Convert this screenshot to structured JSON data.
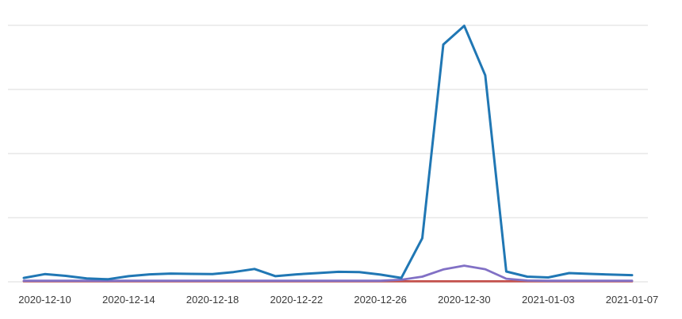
{
  "chart_data": {
    "type": "line",
    "title": "",
    "legend": "none",
    "grid": true,
    "y_axis_labels_visible": false,
    "ylim": [
      0,
      103
    ],
    "y_gridlines": [
      0,
      25,
      50,
      75,
      100
    ],
    "x_tick_labels": [
      "2020-12-10",
      "2020-12-14",
      "2020-12-18",
      "2020-12-22",
      "2020-12-26",
      "2020-12-30",
      "2021-01-03",
      "2021-01-07"
    ],
    "x_dates": [
      "2020-12-09",
      "2020-12-10",
      "2020-12-11",
      "2020-12-12",
      "2020-12-13",
      "2020-12-14",
      "2020-12-15",
      "2020-12-16",
      "2020-12-17",
      "2020-12-18",
      "2020-12-19",
      "2020-12-20",
      "2020-12-21",
      "2020-12-22",
      "2020-12-23",
      "2020-12-24",
      "2020-12-25",
      "2020-12-26",
      "2020-12-27",
      "2020-12-28",
      "2020-12-29",
      "2020-12-30",
      "2020-12-31",
      "2021-01-01",
      "2021-01-02",
      "2021-01-03",
      "2021-01-04",
      "2021-01-05",
      "2021-01-06",
      "2021-01-07"
    ],
    "series": [
      {
        "name": "red-line",
        "color": "#c4514d",
        "values": [
          0.2,
          0.2,
          0.2,
          0.2,
          0.2,
          0.2,
          0.2,
          0.2,
          0.2,
          0.2,
          0.2,
          0.2,
          0.2,
          0.2,
          0.2,
          0.2,
          0.2,
          0.2,
          0.2,
          0.2,
          0.2,
          0.2,
          0.2,
          0.2,
          0.2,
          0.2,
          0.2,
          0.2,
          0.2,
          0.2
        ]
      },
      {
        "name": "purple-line",
        "color": "#8170c5",
        "values": [
          0.4,
          0.4,
          0.4,
          0.4,
          0.4,
          0.4,
          0.4,
          0.4,
          0.4,
          0.4,
          0.4,
          0.4,
          0.4,
          0.4,
          0.4,
          0.4,
          0.4,
          0.4,
          0.8,
          2.0,
          4.8,
          6.3,
          4.9,
          1.2,
          0.5,
          0.4,
          0.4,
          0.4,
          0.4,
          0.4
        ]
      },
      {
        "name": "blue-line",
        "color": "#2077b4",
        "values": [
          1.5,
          3.0,
          2.3,
          1.3,
          1.0,
          2.2,
          2.9,
          3.2,
          3.1,
          3.0,
          3.8,
          5.0,
          2.2,
          2.9,
          3.4,
          3.9,
          3.8,
          2.8,
          1.5,
          17.0,
          92.5,
          99.8,
          80.5,
          4.0,
          2.0,
          1.7,
          3.4,
          3.1,
          2.8,
          2.6
        ]
      }
    ],
    "colors": {
      "background": "#ffffff",
      "gridline": "#ededed",
      "axis_label_text": "#3a3a3a"
    }
  }
}
